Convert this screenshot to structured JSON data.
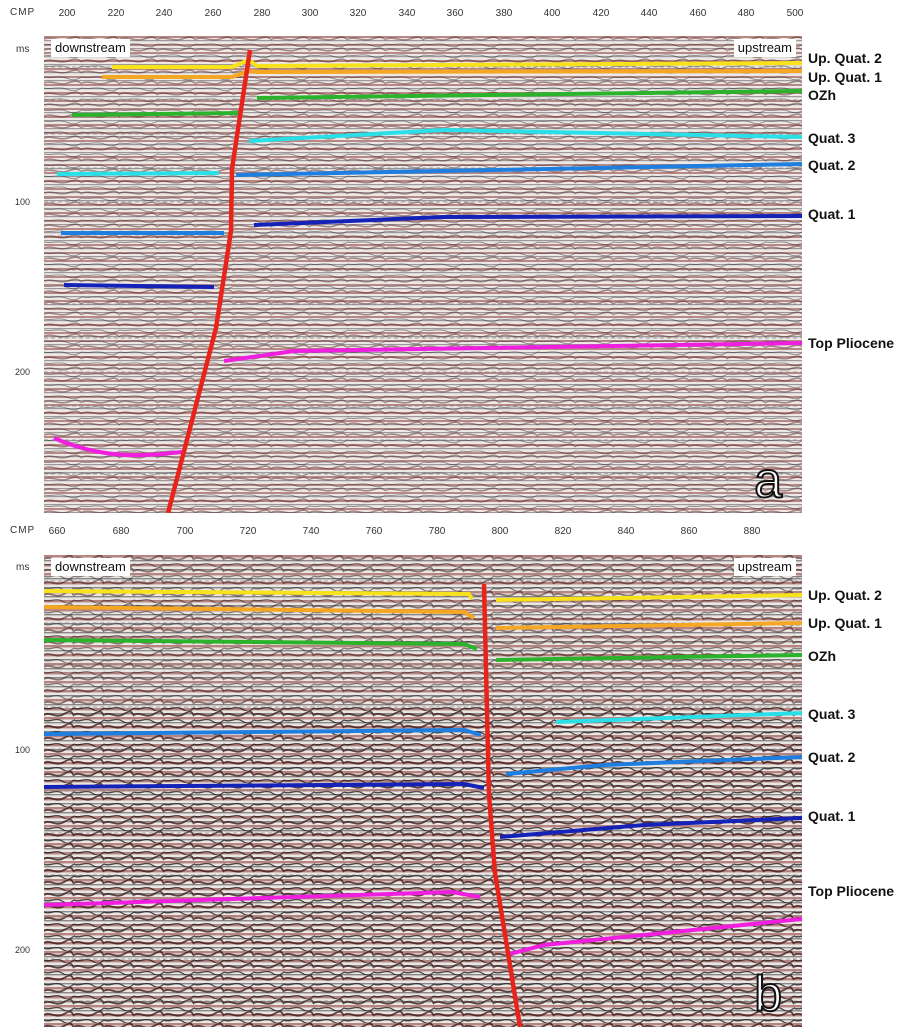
{
  "axis": {
    "cmp_label": "CMP",
    "ms_label": "ms"
  },
  "colors": {
    "fault": "#e8231b",
    "Up. Quat. 2": "#f7e21c",
    "Up. Quat. 1": "#f5a623",
    "OZh": "#2bb32b",
    "Quat. 3": "#29e0e8",
    "Quat. 2": "#1f7fe0",
    "Quat. 1": "#1422b8",
    "Top Pliocene": "#f01fe0"
  },
  "panels": [
    {
      "id": "a",
      "letter": "a",
      "side_left": "downstream",
      "side_right": "upstream",
      "cmp_ticks": [
        "200",
        "220",
        "240",
        "260",
        "280",
        "300",
        "320",
        "340",
        "360",
        "380",
        "400",
        "420",
        "440",
        "460",
        "480",
        "500"
      ],
      "ms_ticks": [
        "100",
        "200"
      ],
      "horizons": [
        "Up. Quat. 2",
        "Up. Quat. 1",
        "OZh",
        "Quat. 3",
        "Quat. 2",
        "Quat. 1",
        "Top Pliocene"
      ]
    },
    {
      "id": "b",
      "letter": "b",
      "side_left": "downstream",
      "side_right": "upstream",
      "cmp_ticks": [
        "660",
        "680",
        "700",
        "720",
        "740",
        "760",
        "780",
        "800",
        "820",
        "840",
        "860",
        "880"
      ],
      "ms_ticks": [
        "100",
        "200"
      ],
      "horizons": [
        "Up. Quat. 2",
        "Up. Quat. 1",
        "OZh",
        "Quat. 3",
        "Quat. 2",
        "Quat. 1",
        "Top Pliocene"
      ]
    }
  ]
}
